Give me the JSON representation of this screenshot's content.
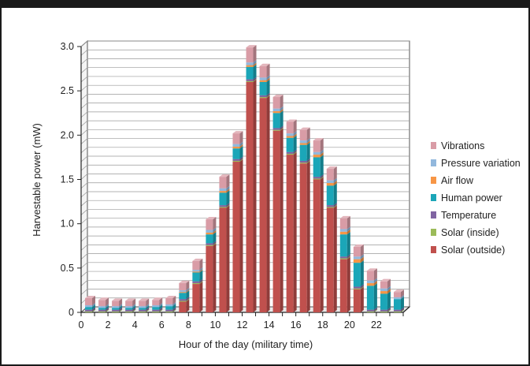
{
  "chart_data": {
    "type": "bar",
    "stacked": true,
    "three_d": true,
    "xlabel": "Hour of the day (military time)",
    "ylabel": "Harvestable power (mW)",
    "ylim": [
      0,
      3.0
    ],
    "yticks": [
      "0",
      "0.5",
      "1.0",
      "1.5",
      "2.0",
      "2.5",
      "3.0"
    ],
    "xticks": [
      "0",
      "2",
      "4",
      "6",
      "8",
      "10",
      "12",
      "14",
      "16",
      "18",
      "20",
      "22"
    ],
    "categories": [
      0,
      1,
      2,
      3,
      4,
      5,
      6,
      7,
      8,
      9,
      10,
      11,
      12,
      13,
      14,
      15,
      16,
      17,
      18,
      19,
      20,
      21,
      22,
      23
    ],
    "legend_position": "right",
    "grid": true,
    "series": [
      {
        "name": "Solar (outside)",
        "color": "#c0504d",
        "values": [
          0,
          0,
          0,
          0,
          0,
          0,
          0,
          0.12,
          0.32,
          0.75,
          1.18,
          1.7,
          2.6,
          2.42,
          2.05,
          1.78,
          1.68,
          1.5,
          1.18,
          0.6,
          0.26,
          0,
          0,
          0
        ]
      },
      {
        "name": "Solar (inside)",
        "color": "#9bbb59",
        "values": [
          0.01,
          0.01,
          0.01,
          0.01,
          0.01,
          0.01,
          0.01,
          0.01,
          0.01,
          0.01,
          0.01,
          0.01,
          0.01,
          0.01,
          0.01,
          0.01,
          0.01,
          0.01,
          0.01,
          0.01,
          0.01,
          0.01,
          0.01,
          0.01
        ]
      },
      {
        "name": "Temperature",
        "color": "#8064a2",
        "values": [
          0.02,
          0.02,
          0.02,
          0.02,
          0.02,
          0.02,
          0.02,
          0.02,
          0.02,
          0.02,
          0.02,
          0.02,
          0.02,
          0.02,
          0.02,
          0.02,
          0.02,
          0.02,
          0.02,
          0.02,
          0.02,
          0.02,
          0.02,
          0.02
        ]
      },
      {
        "name": "Human power",
        "color": "#1ba6b8",
        "values": [
          0.03,
          0.02,
          0.02,
          0.02,
          0.02,
          0.03,
          0.04,
          0.07,
          0.1,
          0.1,
          0.14,
          0.12,
          0.14,
          0.15,
          0.17,
          0.16,
          0.18,
          0.22,
          0.22,
          0.25,
          0.27,
          0.27,
          0.18,
          0.12
        ]
      },
      {
        "name": "Air flow",
        "color": "#f79646",
        "values": [
          0,
          0,
          0,
          0,
          0,
          0,
          0,
          0.01,
          0.01,
          0.02,
          0.02,
          0.02,
          0.02,
          0.02,
          0.02,
          0.02,
          0.02,
          0.03,
          0.03,
          0.03,
          0.04,
          0.03,
          0.03,
          0
        ]
      },
      {
        "name": "Pressure variation",
        "color": "#92b8dd",
        "values": [
          0.02,
          0.02,
          0.02,
          0.02,
          0.02,
          0.02,
          0.02,
          0.02,
          0.02,
          0.03,
          0.03,
          0.03,
          0.03,
          0.03,
          0.03,
          0.03,
          0.03,
          0.03,
          0.03,
          0.03,
          0.03,
          0.03,
          0.03,
          0.02
        ]
      },
      {
        "name": "Vibrations",
        "color": "#d99ca6",
        "values": [
          0.08,
          0.07,
          0.06,
          0.06,
          0.06,
          0.06,
          0.07,
          0.08,
          0.1,
          0.12,
          0.13,
          0.12,
          0.17,
          0.13,
          0.13,
          0.13,
          0.12,
          0.13,
          0.13,
          0.12,
          0.11,
          0.11,
          0.08,
          0.06
        ]
      }
    ]
  }
}
